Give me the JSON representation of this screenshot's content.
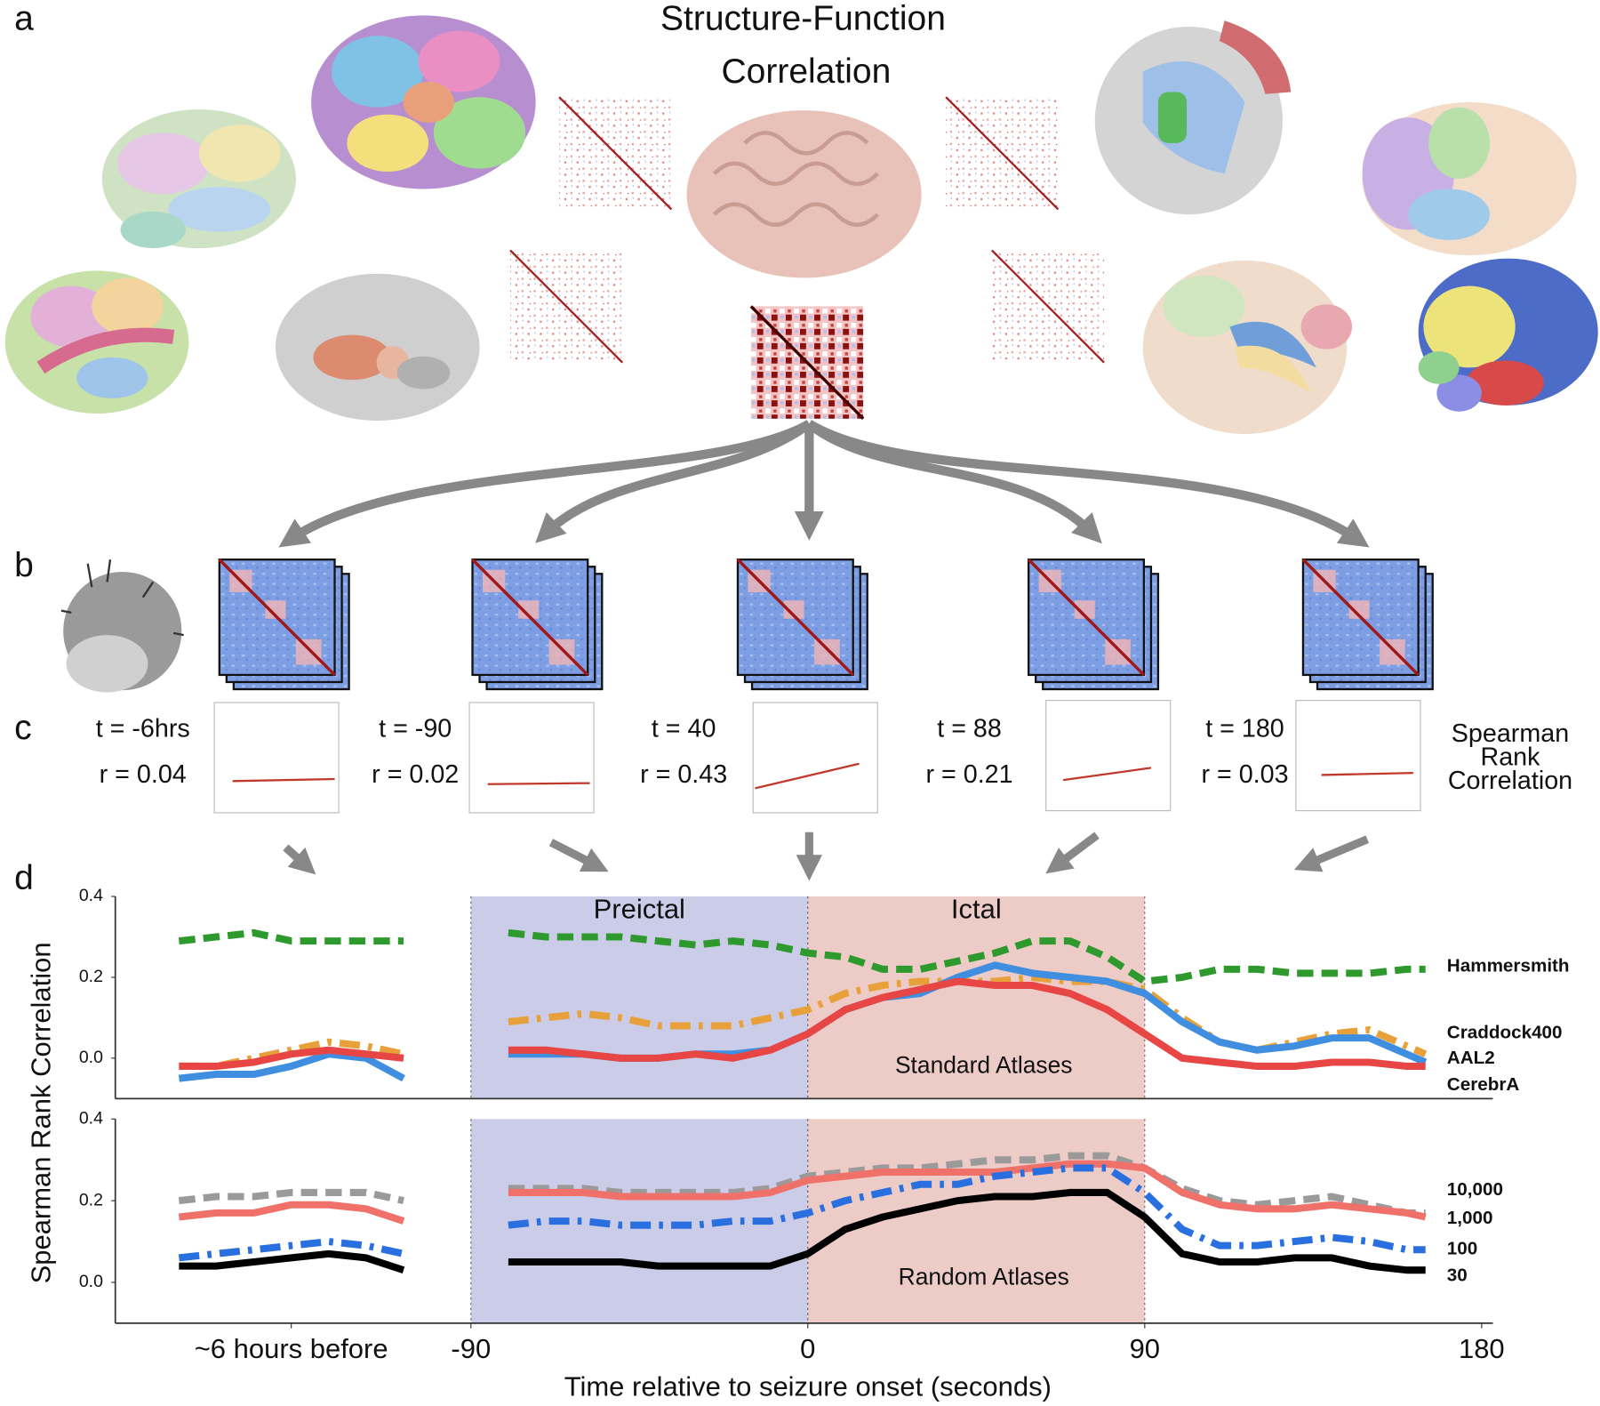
{
  "figure": {
    "panel_labels": [
      "a",
      "b",
      "c",
      "d"
    ],
    "title_lines": [
      "Structure-Function",
      "Correlation"
    ],
    "panel_c": [
      {
        "t": "t = -6hrs",
        "r": "r = 0.04"
      },
      {
        "t": "t = -90",
        "r": "r = 0.02"
      },
      {
        "t": "t = 40",
        "r": "r = 0.43"
      },
      {
        "t": "t = 88",
        "r": "r = 0.21"
      },
      {
        "t": "t = 180",
        "r": "r = 0.03"
      }
    ],
    "panel_c_caption": [
      "Spearman",
      "Rank",
      "Correlation"
    ],
    "y_label": "Spearman Rank Correlation"
  },
  "chart_data": [
    {
      "type": "line",
      "annotation": "Standard Atlases",
      "x": [
        -168,
        -158,
        -148,
        -138,
        -128,
        -118,
        -108,
        -95,
        -80,
        -70,
        -60,
        -50,
        -40,
        -30,
        -20,
        -10,
        0,
        10,
        20,
        30,
        40,
        50,
        60,
        70,
        80,
        90,
        100,
        110,
        120,
        130,
        140,
        150,
        160,
        165
      ],
      "xlim": [
        -185,
        183
      ],
      "ylim": [
        -0.1,
        0.4
      ],
      "yticks": [
        {
          "value": 0,
          "label": "0.0"
        },
        0.2,
        0.4
      ],
      "regions": [
        {
          "label": "Preictal",
          "start": -90,
          "end": 0,
          "color": "#cbcde8",
          "label_color": "#27277a"
        },
        {
          "label": "Ictal",
          "start": 0,
          "end": 90,
          "color": "#edcbc6",
          "label_color": "#7a2323"
        }
      ],
      "series": [
        {
          "name": "Hammersmith",
          "color": "#2e9a2e",
          "line_style": "dashed",
          "values": [
            0.29,
            0.3,
            0.31,
            0.29,
            0.29,
            0.29,
            0.29,
            null,
            0.31,
            0.3,
            0.3,
            0.3,
            0.29,
            0.28,
            0.29,
            0.28,
            0.26,
            0.25,
            0.22,
            0.22,
            0.24,
            0.26,
            0.29,
            0.29,
            0.25,
            0.19,
            0.2,
            0.22,
            0.22,
            0.21,
            0.21,
            0.21,
            0.22,
            0.22
          ]
        },
        {
          "name": "Craddock400",
          "color": "#e8a13a",
          "line_style": "dashdot",
          "values": [
            -0.02,
            -0.02,
            0.0,
            0.02,
            0.04,
            0.03,
            0.01,
            null,
            0.09,
            0.1,
            0.11,
            0.1,
            0.08,
            0.08,
            0.08,
            0.1,
            0.12,
            0.16,
            0.18,
            0.19,
            0.19,
            0.19,
            0.2,
            0.19,
            0.19,
            0.17,
            0.1,
            0.04,
            0.02,
            0.04,
            0.06,
            0.07,
            0.03,
            0.01
          ]
        },
        {
          "name": "AAL2",
          "color": "#3f8ee0",
          "line_style": "solid",
          "values": [
            -0.05,
            -0.04,
            -0.04,
            -0.02,
            0.01,
            0.0,
            -0.05,
            null,
            0.01,
            0.01,
            0.01,
            0.0,
            0.0,
            0.01,
            0.01,
            0.02,
            0.06,
            0.12,
            0.15,
            0.16,
            0.2,
            0.23,
            0.21,
            0.2,
            0.19,
            0.16,
            0.09,
            0.04,
            0.02,
            0.03,
            0.05,
            0.05,
            0.01,
            -0.01
          ]
        },
        {
          "name": "CerebrA",
          "color": "#e84545",
          "line_style": "solid",
          "values": [
            -0.02,
            -0.02,
            -0.01,
            0.01,
            0.02,
            0.01,
            0.0,
            null,
            0.02,
            0.02,
            0.01,
            0.0,
            0.0,
            0.01,
            0.0,
            0.02,
            0.06,
            0.12,
            0.15,
            0.17,
            0.19,
            0.18,
            0.18,
            0.16,
            0.12,
            0.06,
            0.0,
            -0.01,
            -0.02,
            -0.02,
            -0.01,
            -0.01,
            -0.02,
            -0.02
          ]
        }
      ]
    },
    {
      "type": "line",
      "annotation": "Random Atlases",
      "x_label": "Time relative to seizure onset (seconds)",
      "x": [
        -168,
        -158,
        -148,
        -138,
        -128,
        -118,
        -108,
        -95,
        -80,
        -70,
        -60,
        -50,
        -40,
        -30,
        -20,
        -10,
        0,
        10,
        20,
        30,
        40,
        50,
        60,
        70,
        80,
        90,
        100,
        110,
        120,
        130,
        140,
        150,
        160,
        165
      ],
      "xlim": [
        -185,
        183
      ],
      "xticks": [
        {
          "value": -138,
          "label": "~6 hours before"
        },
        -90,
        0,
        90,
        180
      ],
      "ylim": [
        -0.1,
        0.4
      ],
      "yticks": [
        {
          "value": 0,
          "label": "0.0"
        },
        0.2,
        0.4
      ],
      "legend_color": "#000000",
      "regions": [
        {
          "start": -90,
          "end": 0,
          "color": "#cbcde8"
        },
        {
          "start": 0,
          "end": 90,
          "color": "#edcbc6"
        }
      ],
      "series": [
        {
          "name": "10,000",
          "color": "#9a9a9a",
          "line_style": "dashed",
          "values": [
            0.2,
            0.21,
            0.21,
            0.22,
            0.22,
            0.22,
            0.2,
            null,
            0.23,
            0.23,
            0.23,
            0.22,
            0.22,
            0.22,
            0.22,
            0.23,
            0.26,
            0.27,
            0.28,
            0.28,
            0.29,
            0.3,
            0.3,
            0.31,
            0.31,
            0.28,
            0.23,
            0.2,
            0.19,
            0.2,
            0.21,
            0.19,
            0.17,
            0.17
          ]
        },
        {
          "name": "1,000",
          "color": "#f0706a",
          "line_style": "solid",
          "values": [
            0.16,
            0.17,
            0.17,
            0.19,
            0.19,
            0.18,
            0.15,
            null,
            0.22,
            0.22,
            0.22,
            0.21,
            0.21,
            0.21,
            0.21,
            0.22,
            0.25,
            0.26,
            0.27,
            0.27,
            0.27,
            0.27,
            0.28,
            0.29,
            0.29,
            0.28,
            0.22,
            0.19,
            0.18,
            0.18,
            0.19,
            0.18,
            0.17,
            0.16
          ]
        },
        {
          "name": "100",
          "color": "#2a6fe0",
          "line_style": "dashdot",
          "values": [
            0.06,
            0.07,
            0.08,
            0.09,
            0.1,
            0.09,
            0.07,
            null,
            0.14,
            0.15,
            0.15,
            0.14,
            0.14,
            0.14,
            0.15,
            0.15,
            0.17,
            0.2,
            0.22,
            0.24,
            0.24,
            0.26,
            0.27,
            0.28,
            0.28,
            0.22,
            0.13,
            0.09,
            0.09,
            0.1,
            0.11,
            0.1,
            0.08,
            0.08
          ]
        },
        {
          "name": "30",
          "color": "#000000",
          "line_style": "solid",
          "values": [
            0.04,
            0.04,
            0.05,
            0.06,
            0.07,
            0.06,
            0.03,
            null,
            0.05,
            0.05,
            0.05,
            0.05,
            0.04,
            0.04,
            0.04,
            0.04,
            0.07,
            0.13,
            0.16,
            0.18,
            0.2,
            0.21,
            0.21,
            0.22,
            0.22,
            0.16,
            0.07,
            0.05,
            0.05,
            0.06,
            0.06,
            0.04,
            0.03,
            0.03
          ]
        }
      ]
    }
  ]
}
